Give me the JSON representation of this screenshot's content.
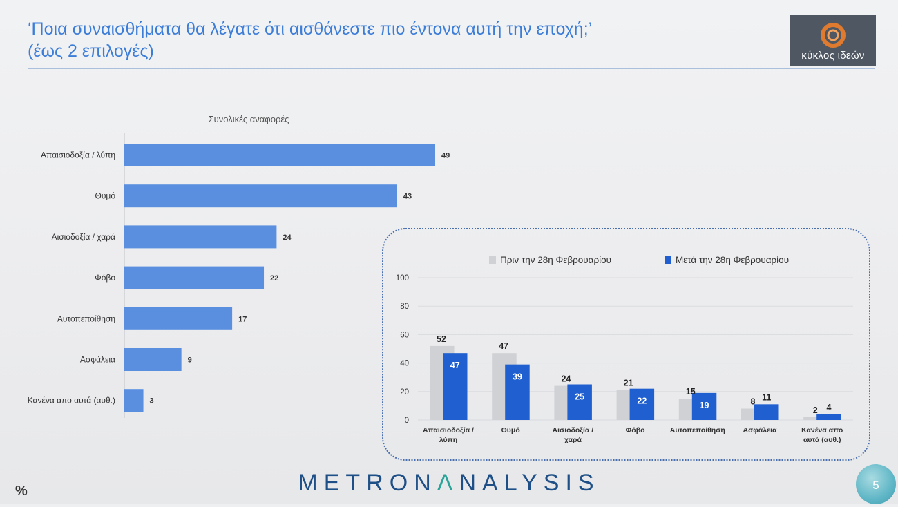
{
  "slide": {
    "title_line1": "‘Ποια συναισθήματα θα λέγατε ότι αισθάνεστε πιο έντονα αυτή την εποχή;’",
    "title_line2": "(έως 2 επιλογές)",
    "logo_text": "κύκλος ιδεών",
    "footer_unit": "%",
    "footer_brand_part1": "METRON",
    "footer_brand_accent": "Λ",
    "footer_brand_part2": "NALYSIS",
    "page_number": "5",
    "colors": {
      "title": "#3c7dd8",
      "main_bar": "#5a8fe0",
      "before_bar": "#cfd1d4",
      "after_bar": "#1f5fcf",
      "brand": "#1e4f86",
      "brand_accent": "#2aa398"
    }
  },
  "chart_data": [
    {
      "type": "bar",
      "orientation": "horizontal",
      "title": "Συνολικές αναφορές",
      "categories": [
        "Απαισιοδοξία / λύπη",
        "Θυμό",
        "Αισιοδοξία / χαρά",
        "Φόβο",
        "Αυτοπεποίθηση",
        "Ασφάλεια",
        "Κανένα απο αυτά (αυθ.)"
      ],
      "values": [
        49,
        43,
        24,
        22,
        17,
        9,
        3
      ],
      "xlim": [
        0,
        60
      ],
      "grid": false,
      "data_labels": true
    },
    {
      "type": "bar",
      "orientation": "vertical",
      "categories": [
        "Απαισιοδοξία / λύπη",
        "Θυμό",
        "Αισιοδοξία / χαρά",
        "Φόβο",
        "Αυτοπεποίθηση",
        "Ασφάλεια",
        "Κανένα απο αυτά (αυθ.)"
      ],
      "series": [
        {
          "name": "Πριν την 28η Φεβρουαρίου",
          "values": [
            52,
            47,
            24,
            21,
            15,
            8,
            2
          ]
        },
        {
          "name": "Μετά την 28η Φεβρουαρίου",
          "values": [
            47,
            39,
            25,
            22,
            19,
            11,
            4
          ]
        }
      ],
      "ylim": [
        0,
        100
      ],
      "yticks": [
        0,
        20,
        40,
        60,
        80,
        100
      ],
      "grid": true,
      "legend_position": "top",
      "data_labels": true
    }
  ]
}
